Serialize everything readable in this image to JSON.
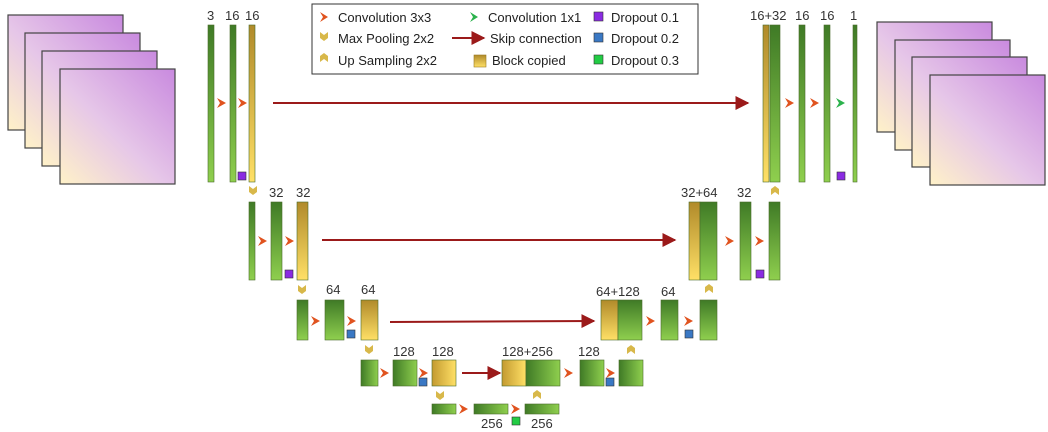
{
  "legend": {
    "items": [
      {
        "label": "Convolution 3x3",
        "icon": "chevron-right-orange-icon"
      },
      {
        "label": "Max Pooling 2x2",
        "icon": "chevron-down-gold-icon"
      },
      {
        "label": "Up Sampling 2x2",
        "icon": "chevron-up-gold-icon"
      },
      {
        "label": "Convolution 1x1",
        "icon": "chevron-right-green-icon"
      },
      {
        "label": "Skip connection",
        "icon": "arrow-right-darkred-icon"
      },
      {
        "label": "Block copied",
        "icon": "gold-gradient-square-icon"
      },
      {
        "label": "Dropout 0.1",
        "icon": "purple-square-icon"
      },
      {
        "label": "Dropout 0.2",
        "icon": "blue-square-icon"
      },
      {
        "label": "Dropout 0.3",
        "icon": "green-square-icon"
      }
    ]
  },
  "encoder": {
    "level1": [
      "3",
      "16",
      "16"
    ],
    "level2": [
      "32",
      "32"
    ],
    "level3": [
      "64",
      "64"
    ],
    "level4": [
      "128",
      "128"
    ]
  },
  "bottleneck": [
    "256",
    "256"
  ],
  "decoder": {
    "level4": [
      "128+256",
      "128"
    ],
    "level3": [
      "64+128",
      "64"
    ],
    "level2": [
      "32+64",
      "32"
    ],
    "level1": [
      "16+32",
      "16",
      "16",
      "1"
    ]
  },
  "colors": {
    "conv_block": "#5a9a3a",
    "copied_block": "#d9a832",
    "conv_arrow": "#e0531f",
    "pool_arrow": "#d8b84a",
    "conv1x1_arrow": "#2bb24c",
    "skip_arrow": "#9b1a1a",
    "dropout_01": "#8a2be2",
    "dropout_02": "#3a78c4",
    "dropout_03": "#22cc44"
  }
}
